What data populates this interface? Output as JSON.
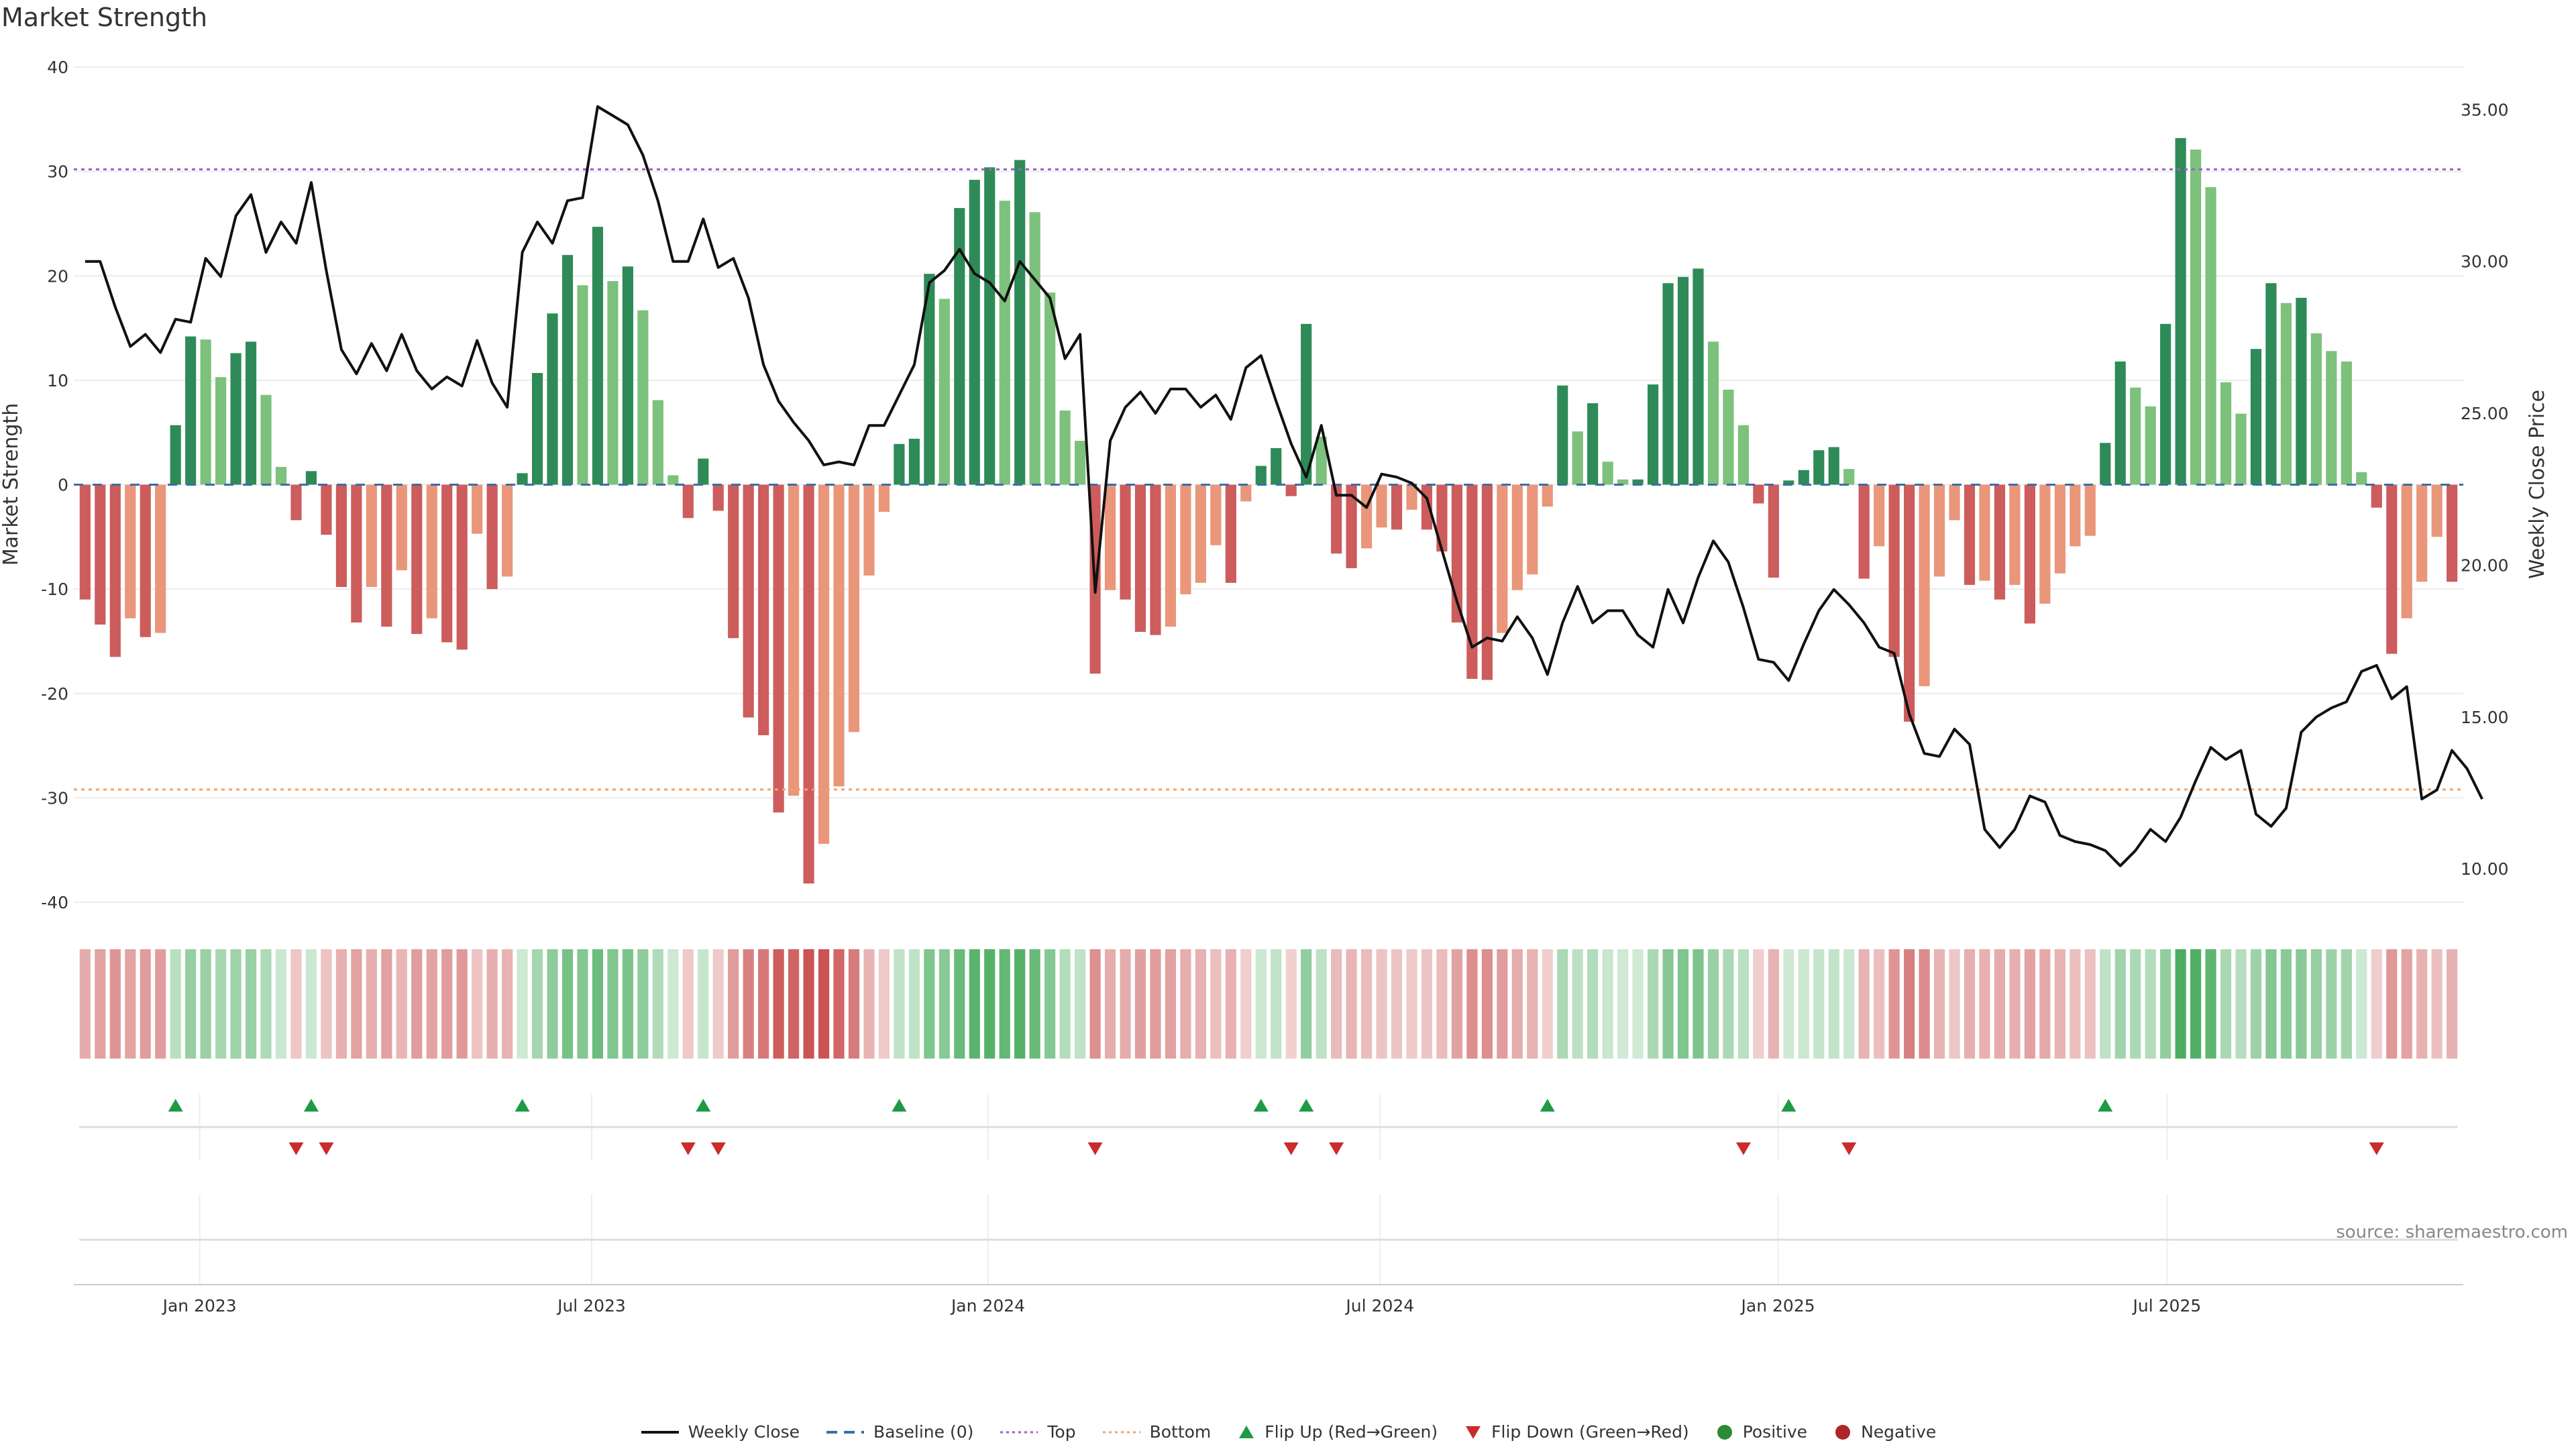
{
  "title": "Market Strength",
  "source": "source: sharemaestro.com",
  "legend": [
    {
      "label": "Weekly Close",
      "kind": "line",
      "color": "#111111"
    },
    {
      "label": "Baseline (0)",
      "kind": "dash",
      "color": "#3a6ea5"
    },
    {
      "label": "Top",
      "kind": "dot",
      "color": "#9b5fd0"
    },
    {
      "label": "Bottom",
      "kind": "dot",
      "color": "#f0a36a"
    },
    {
      "label": "Flip Up (Red→Green)",
      "kind": "tri-up",
      "color": "#1e9a46"
    },
    {
      "label": "Flip Down (Green→Red)",
      "kind": "tri-down",
      "color": "#cc2b2b"
    },
    {
      "label": "Positive",
      "kind": "circle",
      "color": "#2a8a36"
    },
    {
      "label": "Negative",
      "kind": "circle",
      "color": "#b02525"
    }
  ],
  "colors": {
    "pos_strong": "#2e8b57",
    "pos_light": "#7cc17c",
    "neg_strong": "#cd5c5c",
    "neg_light": "#e9967a",
    "price": "#111111",
    "top": "#9b5fd0",
    "bottom": "#f0a36a",
    "flip_up": "#1e9a46",
    "flip_down": "#cc2b2b"
  },
  "chart_data": {
    "type": "bar",
    "ylabel_left": "Market Strength",
    "ylabel_right": "Weekly Close Price",
    "ylim_left": [
      -40,
      40
    ],
    "yticks_left": [
      -40,
      -30,
      -20,
      -10,
      0,
      10,
      20,
      30,
      40
    ],
    "ylim_right": [
      8.9,
      36.4
    ],
    "yticks_right": [
      "10.00",
      "15.00",
      "20.00",
      "25.00",
      "30.00",
      "35.00"
    ],
    "top_line": 30.2,
    "bottom_line": -29.2,
    "x_labels": [
      {
        "label": "Jan 2023",
        "week": 7.6
      },
      {
        "label": "Jul 2023",
        "week": 33.6
      },
      {
        "label": "Jan 2024",
        "week": 59.9
      },
      {
        "label": "Jul 2024",
        "week": 85.9
      },
      {
        "label": "Jan 2025",
        "week": 112.3
      },
      {
        "label": "Jul 2025",
        "week": 138.1
      }
    ],
    "strength": [
      -11,
      -13.4,
      -16.5,
      -12.8,
      -14.6,
      -14.2,
      5.7,
      14.2,
      13.9,
      10.3,
      12.6,
      13.7,
      8.6,
      1.7,
      -3.4,
      1.3,
      -4.8,
      -9.8,
      -13.2,
      -9.8,
      -13.6,
      -8.2,
      -14.3,
      -12.8,
      -15.1,
      -15.8,
      -4.7,
      -10,
      -8.8,
      1.1,
      10.7,
      16.4,
      22,
      19.1,
      24.7,
      19.5,
      20.9,
      16.7,
      8.1,
      0.9,
      -3.2,
      2.5,
      -2.5,
      -14.7,
      -22.3,
      -24,
      -31.4,
      -29.8,
      -38.2,
      -34.4,
      -28.9,
      -23.7,
      -8.7,
      -2.6,
      3.9,
      4.4,
      20.2,
      17.8,
      26.5,
      29.2,
      30.4,
      27.2,
      31.1,
      26.1,
      18.4,
      7.1,
      4.2,
      -18.1,
      -10.1,
      -11,
      -14.1,
      -14.4,
      -13.6,
      -10.5,
      -9.4,
      -5.8,
      -9.4,
      -1.6,
      1.8,
      3.5,
      -1.1,
      15.4,
      4.6,
      -6.6,
      -8,
      -6.1,
      -4.1,
      -4.3,
      -2.4,
      -4.3,
      -6.4,
      -13.2,
      -18.6,
      -18.7,
      -14.2,
      -10.1,
      -8.6,
      -2.1,
      9.5,
      5.1,
      7.8,
      2.2,
      0.5,
      0.5,
      9.6,
      19.3,
      19.9,
      20.7,
      13.7,
      9.1,
      5.7,
      -1.8,
      -8.9,
      0.4,
      1.4,
      3.3,
      3.6,
      1.5,
      -9,
      -5.9,
      -16.5,
      -22.7,
      -19.3,
      -8.8,
      -3.4,
      -9.6,
      -9.2,
      -11,
      -9.6,
      -13.3,
      -11.4,
      -8.5,
      -5.9,
      -4.9,
      4,
      11.8,
      9.3,
      7.5,
      15.4,
      33.2,
      32.1,
      28.5,
      9.8,
      6.8,
      13,
      19.3,
      17.4,
      17.9,
      14.5,
      12.8,
      11.8,
      1.2,
      -2.2,
      -16.2,
      -12.8,
      -9.3,
      -5,
      -9.3
    ],
    "weekly_close": [
      30,
      30,
      28.5,
      27.2,
      27.6,
      27,
      28.1,
      28,
      30.1,
      29.5,
      31.5,
      32.2,
      30.3,
      31.3,
      30.6,
      32.6,
      29.7,
      27.1,
      26.3,
      27.3,
      26.4,
      27.6,
      26.4,
      25.8,
      26.2,
      25.9,
      27.4,
      26,
      25.2,
      30.3,
      31.3,
      30.6,
      32,
      32.1,
      35.1,
      34.8,
      34.5,
      33.5,
      32,
      30,
      30,
      31.4,
      29.8,
      30.1,
      28.8,
      26.6,
      25.4,
      24.7,
      24.1,
      23.3,
      23.4,
      23.3,
      24.6,
      24.6,
      25.6,
      26.6,
      29.3,
      29.7,
      30.4,
      29.6,
      29.3,
      28.7,
      30,
      29.4,
      28.8,
      26.8,
      27.6,
      19.1,
      24.1,
      25.2,
      25.7,
      25,
      25.8,
      25.8,
      25.2,
      25.6,
      24.8,
      26.5,
      26.9,
      25.4,
      24,
      22.9,
      24.6,
      22.3,
      22.3,
      21.9,
      23,
      22.9,
      22.7,
      22.2,
      20.5,
      18.8,
      17.3,
      17.6,
      17.5,
      18.3,
      17.6,
      16.4,
      18.1,
      19.3,
      18.1,
      18.5,
      18.5,
      17.7,
      17.3,
      19.2,
      18.1,
      19.6,
      20.8,
      20.1,
      18.6,
      16.9,
      16.8,
      16.2,
      17.4,
      18.5,
      19.2,
      18.7,
      18.1,
      17.3,
      17.1,
      15.1,
      13.8,
      13.7,
      14.6,
      14.1,
      11.3,
      10.7,
      11.3,
      12.4,
      12.2,
      11.1,
      10.9,
      10.8,
      10.6,
      10.1,
      10.6,
      11.3,
      10.9,
      11.7,
      12.9,
      14,
      13.6,
      13.9,
      11.8,
      11.4,
      12,
      14.5,
      15,
      15.3,
      15.5,
      16.5,
      16.7,
      15.6,
      16,
      12.3,
      12.6,
      13.9,
      13.3,
      12.3
    ],
    "flip_up_weeks": [
      6,
      15,
      29,
      41,
      54,
      78,
      81,
      97,
      113,
      134
    ],
    "flip_down_weeks": [
      14,
      16,
      40,
      42,
      67,
      80,
      83,
      110,
      117,
      152
    ]
  }
}
